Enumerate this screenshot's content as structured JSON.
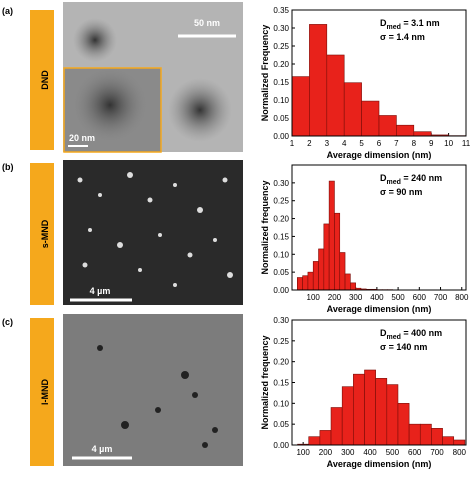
{
  "panels": [
    {
      "label": "(a)",
      "sample": "DND",
      "scale": "50 nm",
      "inset_scale": "20 nm"
    },
    {
      "label": "(b)",
      "sample": "s-MND",
      "scale": "4 µm"
    },
    {
      "label": "(c)",
      "sample": "l-MND",
      "scale": "4 µm"
    }
  ],
  "chart_data": [
    {
      "type": "histogram",
      "ylabel": "Normalized Frequency",
      "xlabel": "Average dimension (nm)",
      "annotation": {
        "base": "D",
        "sub": "med",
        "rest": " = 3.1 nm",
        "line2": "σ = 1.4 nm"
      },
      "bins": [
        1,
        2,
        3,
        4,
        5,
        6,
        7,
        8,
        9,
        10,
        11
      ],
      "values": [
        0.165,
        0.31,
        0.225,
        0.148,
        0.097,
        0.057,
        0.03,
        0.012,
        0.003,
        0.001
      ],
      "color": "#e8221b",
      "xlim": [
        1,
        11
      ],
      "xticks": [
        1,
        2,
        3,
        4,
        5,
        6,
        7,
        8,
        9,
        10,
        11
      ],
      "ylim": [
        0,
        0.35
      ],
      "yticks": [
        {
          "value": 0,
          "label": "0.00"
        },
        {
          "value": 0.05,
          "label": "0.05"
        },
        {
          "value": 0.1,
          "label": "0.10"
        },
        {
          "value": 0.15,
          "label": "0.15"
        },
        {
          "value": 0.2,
          "label": "0.20"
        },
        {
          "value": 0.25,
          "label": "0.25"
        },
        {
          "value": 0.3,
          "label": "0.30"
        },
        {
          "value": 0.35,
          "label": "0.35"
        }
      ]
    },
    {
      "type": "histogram",
      "ylabel": "Normalized frequency",
      "xlabel": "Average dimension (nm)",
      "annotation": {
        "base": "D",
        "sub": "med",
        "rest": " = 240 nm",
        "line2": "σ = 90 nm"
      },
      "bins": [
        25,
        50,
        75,
        100,
        125,
        150,
        175,
        200,
        225,
        250,
        275,
        300,
        325,
        350,
        375,
        400,
        425,
        450,
        475
      ],
      "values": [
        0.035,
        0.04,
        0.05,
        0.08,
        0.115,
        0.185,
        0.305,
        0.215,
        0.105,
        0.045,
        0.02,
        0.005,
        0.003,
        0.002,
        0.002,
        0.001,
        0.001,
        0.001
      ],
      "color": "#e8221b",
      "xlim": [
        0,
        820
      ],
      "xticks": [
        100,
        200,
        300,
        400,
        500,
        600,
        700,
        800
      ],
      "ylim": [
        0,
        0.35
      ],
      "yticks": [
        {
          "value": 0,
          "label": "0.00"
        },
        {
          "value": 0.05,
          "label": "0.05"
        },
        {
          "value": 0.1,
          "label": "0.10"
        },
        {
          "value": 0.15,
          "label": "0.15"
        },
        {
          "value": 0.2,
          "label": "0.20"
        },
        {
          "value": 0.25,
          "label": "0.25"
        },
        {
          "value": 0.3,
          "label": "0.30"
        }
      ]
    },
    {
      "type": "histogram",
      "ylabel": "Normalized frequency",
      "xlabel": "Average dimension (nm)",
      "annotation": {
        "base": "D",
        "sub": "med",
        "rest": " = 400 nm",
        "line2": "σ = 140 nm"
      },
      "bins": [
        75,
        125,
        175,
        225,
        275,
        325,
        375,
        425,
        475,
        525,
        575,
        625,
        675,
        725,
        775,
        825
      ],
      "values": [
        0.002,
        0.02,
        0.035,
        0.09,
        0.14,
        0.17,
        0.18,
        0.16,
        0.145,
        0.1,
        0.05,
        0.05,
        0.04,
        0.02,
        0.012
      ],
      "color": "#e8221b",
      "xlim": [
        50,
        830
      ],
      "xticks": [
        100,
        200,
        300,
        400,
        500,
        600,
        700,
        800
      ],
      "ylim": [
        0,
        0.3
      ],
      "yticks": [
        {
          "value": 0,
          "label": "0.00"
        },
        {
          "value": 0.05,
          "label": "0.05"
        },
        {
          "value": 0.1,
          "label": "0.10"
        },
        {
          "value": 0.15,
          "label": "0.15"
        },
        {
          "value": 0.2,
          "label": "0.20"
        },
        {
          "value": 0.25,
          "label": "0.25"
        },
        {
          "value": 0.3,
          "label": "0.30"
        }
      ]
    }
  ]
}
